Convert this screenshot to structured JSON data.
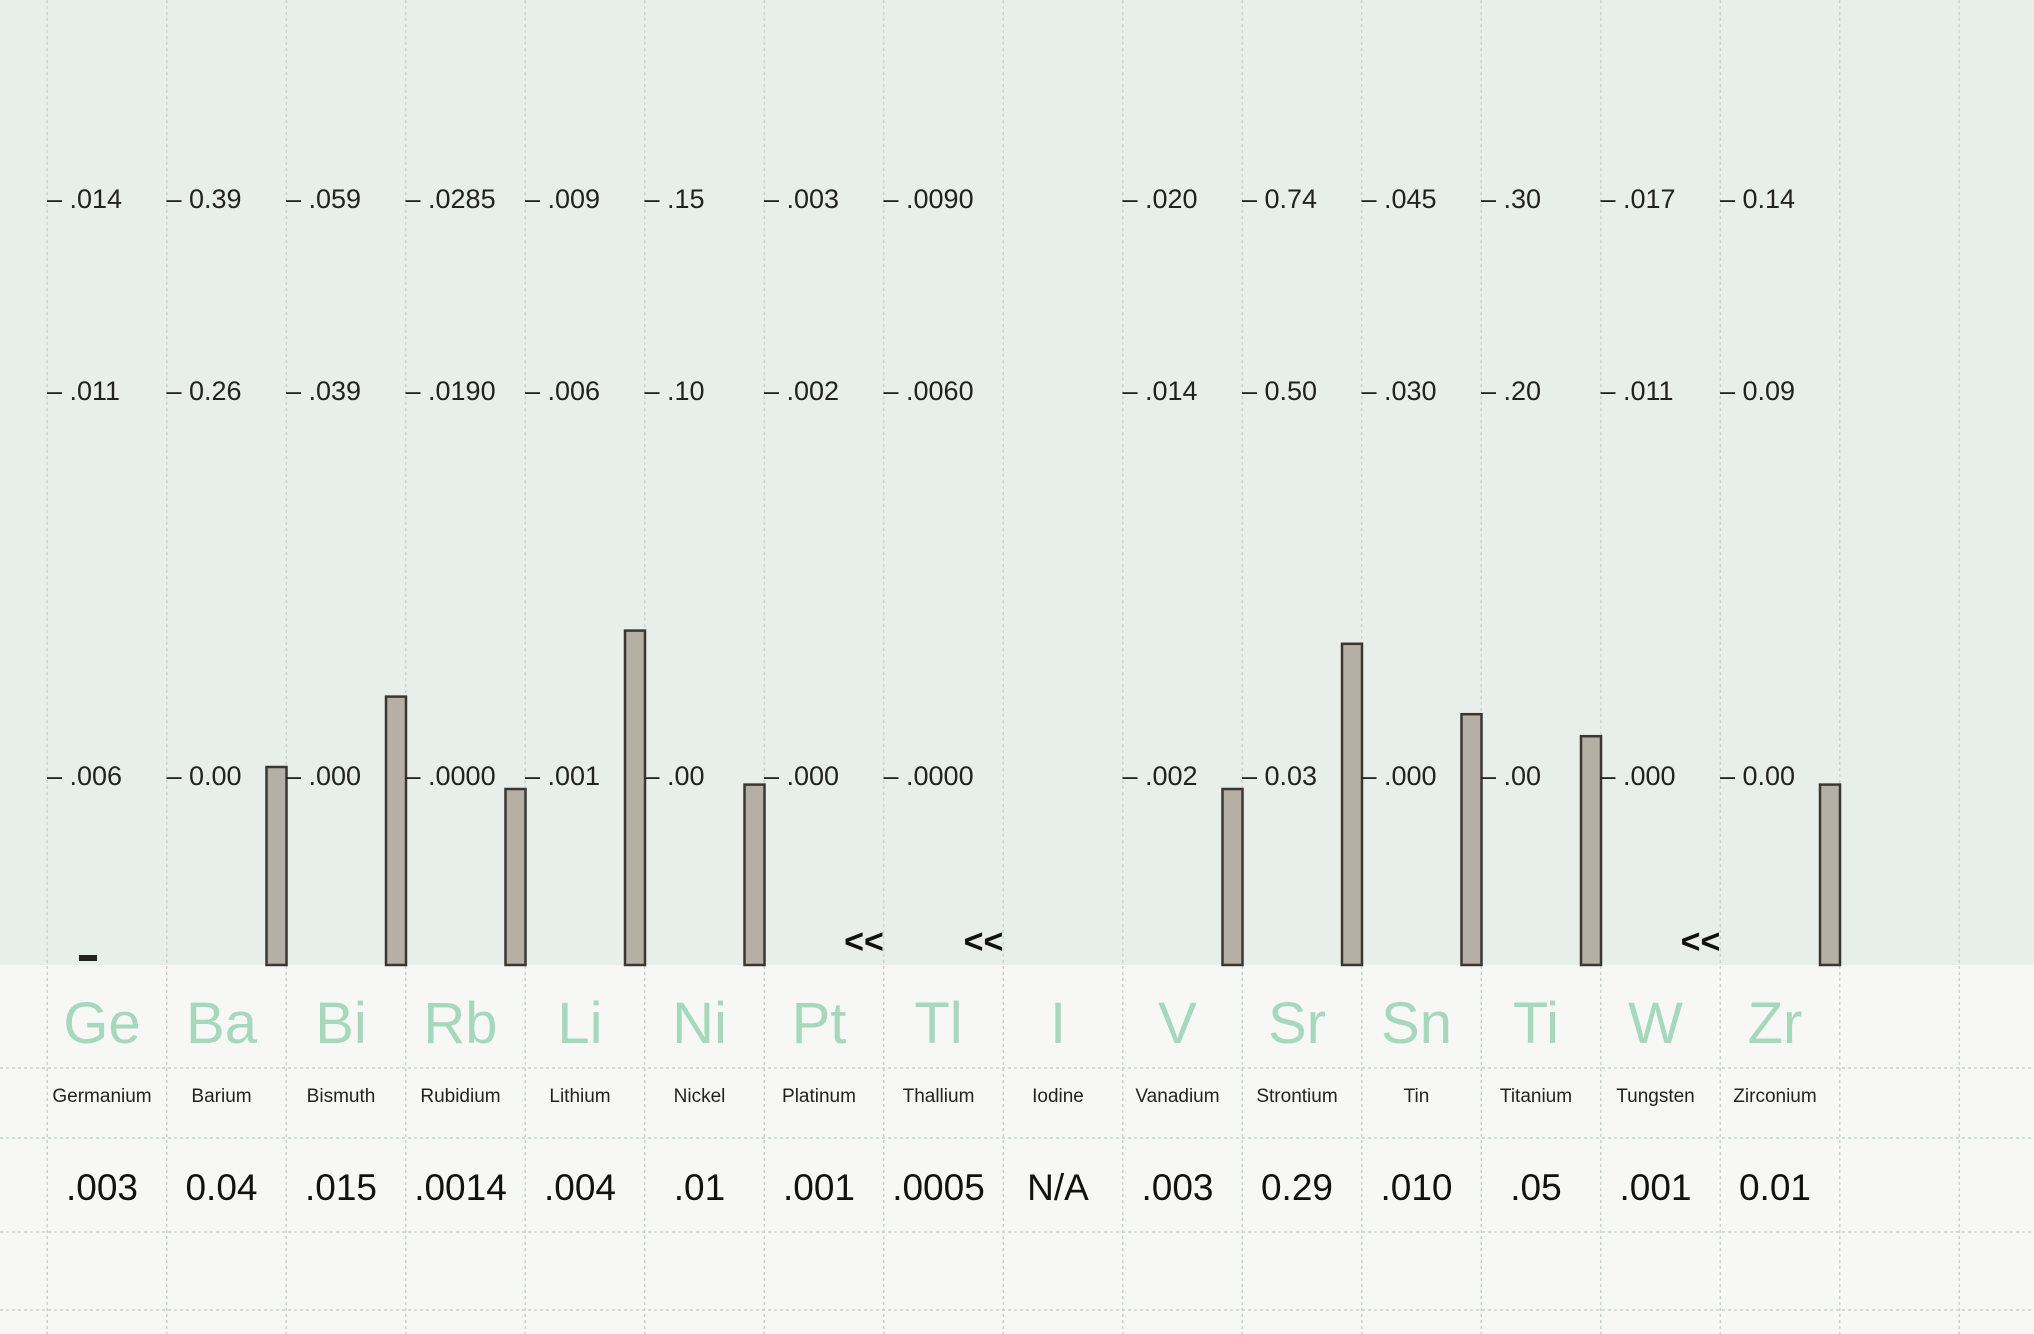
{
  "chart_data": {
    "type": "bar",
    "grid": true,
    "elements": [
      {
        "symbol": "Ge",
        "name": "Germanium",
        "ticks": [
          ".006",
          ".011",
          ".014"
        ],
        "value": ".003",
        "bar": 0.0,
        "marker": "low"
      },
      {
        "symbol": "Ba",
        "name": "Barium",
        "ticks": [
          "0.00",
          "0.26",
          "0.39"
        ],
        "value": "0.04",
        "bar": 0.45
      },
      {
        "symbol": "Bi",
        "name": "Bismuth",
        "ticks": [
          ".000",
          ".039",
          ".059"
        ],
        "value": ".015",
        "bar": 0.61
      },
      {
        "symbol": "Rb",
        "name": "Rubidium",
        "ticks": [
          ".0000",
          ".0190",
          ".0285"
        ],
        "value": ".0014",
        "bar": 0.4
      },
      {
        "symbol": "Li",
        "name": "Lithium",
        "ticks": [
          ".001",
          ".006",
          ".009"
        ],
        "value": ".004",
        "bar": 0.76
      },
      {
        "symbol": "Ni",
        "name": "Nickel",
        "ticks": [
          ".00",
          ".10",
          ".15"
        ],
        "value": ".01",
        "bar": 0.41
      },
      {
        "symbol": "Pt",
        "name": "Platinum",
        "ticks": [
          ".000",
          ".002",
          ".003"
        ],
        "value": ".001",
        "bar": null,
        "marker": "<<"
      },
      {
        "symbol": "Tl",
        "name": "Thallium",
        "ticks": [
          ".0000",
          ".0060",
          ".0090"
        ],
        "value": ".0005",
        "bar": null,
        "marker": "<<"
      },
      {
        "symbol": "I",
        "name": "Iodine",
        "ticks": [],
        "value": "N/A",
        "bar": null
      },
      {
        "symbol": "V",
        "name": "Vanadium",
        "ticks": [
          ".002",
          ".014",
          ".020"
        ],
        "value": ".003",
        "bar": 0.4
      },
      {
        "symbol": "Sr",
        "name": "Strontium",
        "ticks": [
          "0.03",
          "0.50",
          "0.74"
        ],
        "value": "0.29",
        "bar": 0.73
      },
      {
        "symbol": "Sn",
        "name": "Tin",
        "ticks": [
          ".000",
          ".030",
          ".045"
        ],
        "value": ".010",
        "bar": 0.57
      },
      {
        "symbol": "Ti",
        "name": "Titanium",
        "ticks": [
          ".00",
          ".20",
          ".30"
        ],
        "value": ".05",
        "bar": 0.52
      },
      {
        "symbol": "W",
        "name": "Tungsten",
        "ticks": [
          ".000",
          ".011",
          ".017"
        ],
        "value": ".001",
        "bar": null,
        "marker": "<<"
      },
      {
        "symbol": "Zr",
        "name": "Zirconium",
        "ticks": [
          "0.00",
          "0.09",
          "0.14"
        ],
        "value": "0.01",
        "bar": 0.41
      }
    ],
    "colors": {
      "bar": "#b6afa6",
      "symbol": "#a6d8bd",
      "grid": "#c9d6cf"
    }
  }
}
